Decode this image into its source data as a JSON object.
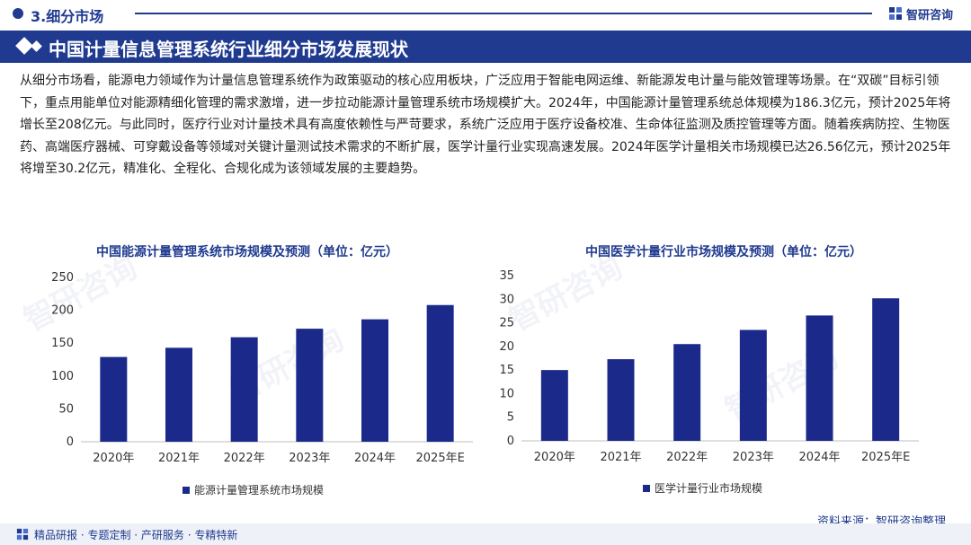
{
  "section": {
    "title": "3.细分市场"
  },
  "logo": {
    "text": "智研咨询",
    "icon": "brand-logo-icon"
  },
  "banner": {
    "title": "中国计量信息管理系统行业细分市场发展现状"
  },
  "paragraph": "从细分市场看，能源电力领域作为计量信息管理系统作为政策驱动的核心应用板块，广泛应用于智能电网运维、新能源发电计量与能效管理等场景。在“双碳”目标引领下，重点用能单位对能源精细化管理的需求激增，进一步拉动能源计量管理系统市场规模扩大。2024年，中国能源计量管理系统总体规模为186.3亿元，预计2025年将增长至208亿元。与此同时，医疗行业对计量技术具有高度依赖性与严苛要求，系统广泛应用于医疗设备校准、生命体征监测及质控管理等方面。随着疾病防控、生物医药、高端医疗器械、可穿戴设备等领域对关键计量测试技术需求的不断扩展，医学计量行业实现高速发展。2024年医学计量相关市场规模已达26.56亿元，预计2025年将增至30.2亿元，精准化、全程化、合规化成为该领域发展的主要趋势。",
  "watermark": "智研咨询",
  "source": "资料来源：智研咨询整理",
  "footer": "精品研报 · 专题定制 · 产研服务 · 专精特新",
  "colors": {
    "primary": "#1f3a8f",
    "bar": "#1b2a8a"
  },
  "chart_data": [
    {
      "type": "bar",
      "title": "中国能源计量管理系统市场规模及预测（单位：亿元）",
      "categories": [
        "2020年",
        "2021年",
        "2022年",
        "2023年",
        "2024年",
        "2025年E"
      ],
      "series": [
        {
          "name": "能源计量管理系统市场规模",
          "values": [
            129,
            143,
            159,
            172,
            186.3,
            208
          ]
        }
      ],
      "ylim": [
        0,
        250
      ],
      "yticks": [
        0,
        50,
        100,
        150,
        200,
        250
      ],
      "grid": false,
      "legend": "bottom-center"
    },
    {
      "type": "bar",
      "title": "中国医学计量行业市场规模及预测（单位：亿元）",
      "categories": [
        "2020年",
        "2021年",
        "2022年",
        "2023年",
        "2024年",
        "2025年E"
      ],
      "series": [
        {
          "name": "医学计量行业市场规模",
          "values": [
            15,
            17.3,
            20.5,
            23.5,
            26.56,
            30.2
          ]
        }
      ],
      "ylim": [
        0,
        35
      ],
      "yticks": [
        0,
        5,
        10,
        15,
        20,
        25,
        30,
        35
      ],
      "grid": false,
      "legend": "bottom-center"
    }
  ]
}
